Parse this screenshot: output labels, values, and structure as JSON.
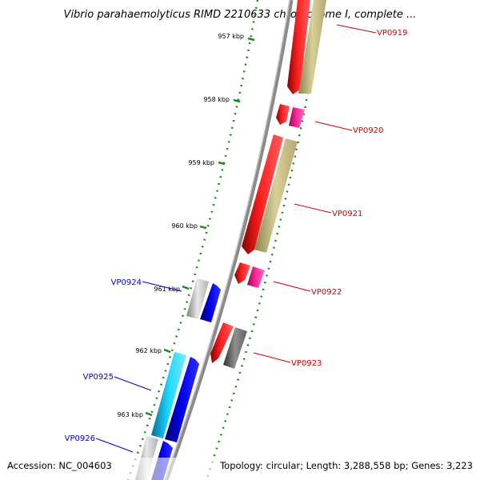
{
  "title": "Vibrio parahaemolyticus RIMD 2210633 chromosome I, complete ...",
  "footer": {
    "accession": "Accession: NC_004603",
    "topology": "Topology: circular; Length: 3,288,558 bp; Genes: 3,223"
  },
  "ticks": [
    "957 kbp",
    "958 kbp",
    "959 kbp",
    "960 kbp",
    "961 kbp",
    "962 kbp",
    "963 kbp"
  ],
  "genes_right": [
    {
      "label": "VP0919",
      "color": "#cc0000"
    },
    {
      "label": "VP0920",
      "color": "#cc0000"
    },
    {
      "label": "VP0921",
      "color": "#cc0000"
    },
    {
      "label": "VP0922",
      "color": "#cc0000"
    },
    {
      "label": "VP0923",
      "color": "#cc0000"
    }
  ],
  "genes_left": [
    {
      "label": "VP0924",
      "color": "#0000cc"
    },
    {
      "label": "VP0925",
      "color": "#0000cc"
    },
    {
      "label": "VP0926",
      "color": "#0000cc"
    }
  ],
  "colors": {
    "backbone": "#8a8a8a",
    "tick_green": "#1a8a1a",
    "red": "#ff0000",
    "olive": "#c8c080",
    "magenta": "#ff1493",
    "blue": "#0000ee",
    "cyan": "#00c8ee",
    "lightgray": "#c0c0c0",
    "darkgray": "#777777"
  }
}
